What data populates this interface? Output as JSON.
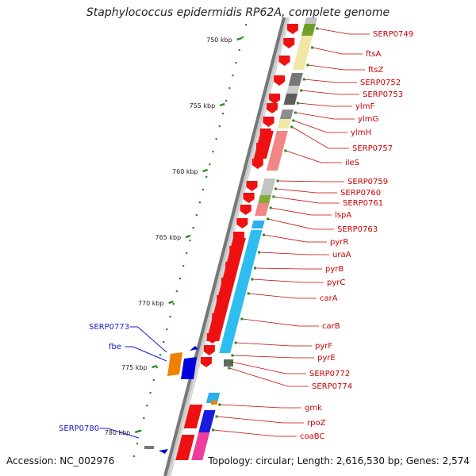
{
  "title": "Staphylococcus epidermidis RP62A, complete genome",
  "accession": "Accession: NC_002976",
  "summary": "Topology: circular; Length: 2,616,530 bp; Genes: 2,574",
  "colors": {
    "backbone": "#7a7a7a",
    "gene_arrow": "#ee1111",
    "feature_label": "#cc0000",
    "highlight_label": "#1a1acc",
    "tick": "#1f8f1f",
    "orange": "#f08000",
    "blue": "#0000dd"
  },
  "scale_ticks": [
    {
      "label": "750 kbp"
    },
    {
      "label": "755 kbp"
    },
    {
      "label": "760 kbp"
    },
    {
      "label": "765 kbp"
    },
    {
      "label": "770 kbp"
    },
    {
      "label": "775 kbp"
    },
    {
      "label": "780 kbp"
    }
  ],
  "gene_labels": [
    "SERP0749",
    "ftsA",
    "ftsZ",
    "SERP0752",
    "SERP0753",
    "ylmF",
    "ylmG",
    "ylmH",
    "SERP0757",
    "ileS",
    "SERP0759",
    "SERP0760",
    "SERP0761",
    "lspA",
    "SERP0763",
    "pyrR",
    "uraA",
    "pyrB",
    "pyrC",
    "carA",
    "carB",
    "pyrF",
    "pyrE",
    "SERP0772",
    "SERP0774",
    "gmk",
    "rpoZ",
    "coaBC"
  ],
  "highlight_labels": [
    "SERP0773",
    "fbe",
    "SERP0780"
  ]
}
